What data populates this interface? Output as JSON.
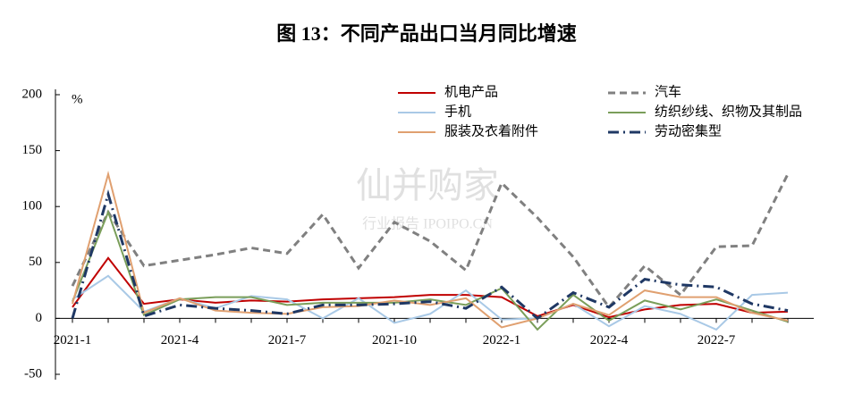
{
  "chart_data": {
    "type": "line",
    "title": "图 13：不同产品出口当月同比增速",
    "y_label": "%",
    "watermark": [
      "仙并购家",
      "行业报告 IPOIPO.CN"
    ],
    "categories": [
      "2021-1",
      null,
      null,
      "2021-4",
      null,
      null,
      "2021-7",
      null,
      null,
      "2021-10",
      null,
      null,
      "2022-1",
      null,
      null,
      "2022-4",
      null,
      null,
      "2022-7",
      null,
      null
    ],
    "ylim": [
      -50,
      200
    ],
    "yticks": [
      -50,
      0,
      50,
      100,
      150,
      200
    ],
    "grid": false,
    "series": [
      {
        "name": "机电产品",
        "color": "#c00000",
        "dash": "solid",
        "values": [
          10,
          54,
          13,
          17,
          14,
          16,
          15,
          17,
          18,
          19,
          21,
          21,
          19,
          2,
          12,
          1,
          8,
          12,
          13,
          5,
          6
        ]
      },
      {
        "name": "汽车",
        "color": "#808080",
        "dash": "dash",
        "values": [
          29,
          95,
          47,
          52,
          57,
          63,
          58,
          93,
          45,
          86,
          69,
          43,
          121,
          90,
          55,
          10,
          47,
          21,
          64,
          65,
          129
        ]
      },
      {
        "name": "手机",
        "color": "#a9c9e6",
        "dash": "solid",
        "values": [
          17,
          38,
          6,
          18,
          9,
          20,
          17,
          0,
          18,
          -4,
          4,
          25,
          -1,
          0,
          13,
          -7,
          11,
          4,
          -10,
          21,
          23
        ]
      },
      {
        "name": "纺织纱线、织物及其制品",
        "color": "#7a9e5a",
        "dash": "solid",
        "values": [
          15,
          95,
          3,
          17,
          19,
          19,
          12,
          14,
          14,
          14,
          17,
          12,
          27,
          -10,
          21,
          -2,
          16,
          8,
          17,
          7,
          -3
        ]
      },
      {
        "name": "服装及衣着附件",
        "color": "#e0a070",
        "dash": "solid",
        "values": [
          13,
          129,
          5,
          18,
          7,
          5,
          4,
          10,
          11,
          16,
          12,
          18,
          -8,
          0,
          13,
          3,
          25,
          19,
          19,
          5,
          -2
        ]
      },
      {
        "name": "劳动密集型",
        "color": "#1f3864",
        "dash": "dashdot",
        "values": [
          0,
          111,
          2,
          12,
          9,
          7,
          4,
          12,
          12,
          13,
          15,
          9,
          28,
          0,
          23,
          10,
          35,
          30,
          28,
          13,
          7
        ]
      }
    ]
  }
}
